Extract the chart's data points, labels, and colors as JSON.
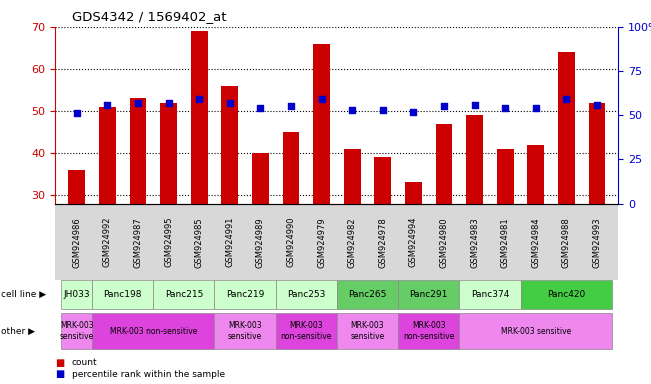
{
  "title": "GDS4342 / 1569402_at",
  "samples": [
    "GSM924986",
    "GSM924992",
    "GSM924987",
    "GSM924995",
    "GSM924985",
    "GSM924991",
    "GSM924989",
    "GSM924990",
    "GSM924979",
    "GSM924982",
    "GSM924978",
    "GSM924994",
    "GSM924980",
    "GSM924983",
    "GSM924981",
    "GSM924984",
    "GSM924988",
    "GSM924993"
  ],
  "counts": [
    36,
    51,
    53,
    52,
    69,
    56,
    40,
    45,
    66,
    41,
    39,
    33,
    47,
    49,
    41,
    42,
    64,
    52
  ],
  "percentiles": [
    51,
    56,
    57,
    57,
    59,
    57,
    54,
    55,
    59,
    53,
    53,
    52,
    55,
    56,
    54,
    54,
    59,
    56
  ],
  "cell_lines": [
    {
      "name": "JH033",
      "start": 0,
      "end": 1,
      "color": "#ccffcc"
    },
    {
      "name": "Panc198",
      "start": 1,
      "end": 3,
      "color": "#ccffcc"
    },
    {
      "name": "Panc215",
      "start": 3,
      "end": 5,
      "color": "#ccffcc"
    },
    {
      "name": "Panc219",
      "start": 5,
      "end": 7,
      "color": "#ccffcc"
    },
    {
      "name": "Panc253",
      "start": 7,
      "end": 9,
      "color": "#ccffcc"
    },
    {
      "name": "Panc265",
      "start": 9,
      "end": 11,
      "color": "#66cc66"
    },
    {
      "name": "Panc291",
      "start": 11,
      "end": 13,
      "color": "#66cc66"
    },
    {
      "name": "Panc374",
      "start": 13,
      "end": 15,
      "color": "#ccffcc"
    },
    {
      "name": "Panc420",
      "start": 15,
      "end": 18,
      "color": "#44cc44"
    }
  ],
  "other_groups": [
    {
      "label": "MRK-003\nsensitive",
      "start": 0,
      "end": 1,
      "color": "#ee88ee"
    },
    {
      "label": "MRK-003 non-sensitive",
      "start": 1,
      "end": 5,
      "color": "#dd44dd"
    },
    {
      "label": "MRK-003\nsensitive",
      "start": 5,
      "end": 7,
      "color": "#ee88ee"
    },
    {
      "label": "MRK-003\nnon-sensitive",
      "start": 7,
      "end": 9,
      "color": "#dd44dd"
    },
    {
      "label": "MRK-003\nsensitive",
      "start": 9,
      "end": 11,
      "color": "#ee88ee"
    },
    {
      "label": "MRK-003\nnon-sensitive",
      "start": 11,
      "end": 13,
      "color": "#dd44dd"
    },
    {
      "label": "MRK-003 sensitive",
      "start": 13,
      "end": 18,
      "color": "#ee88ee"
    }
  ],
  "ylim_left": [
    28,
    70
  ],
  "ylim_right": [
    0,
    100
  ],
  "yticks_left": [
    30,
    40,
    50,
    60,
    70
  ],
  "yticks_right": [
    0,
    25,
    50,
    75,
    100
  ],
  "bar_color": "#cc0000",
  "dot_color": "#0000cc",
  "bg_color": "#ffffff",
  "label_color_left": "#cc0000",
  "label_color_right": "#0000cc",
  "tick_bg": "#d8d8d8"
}
